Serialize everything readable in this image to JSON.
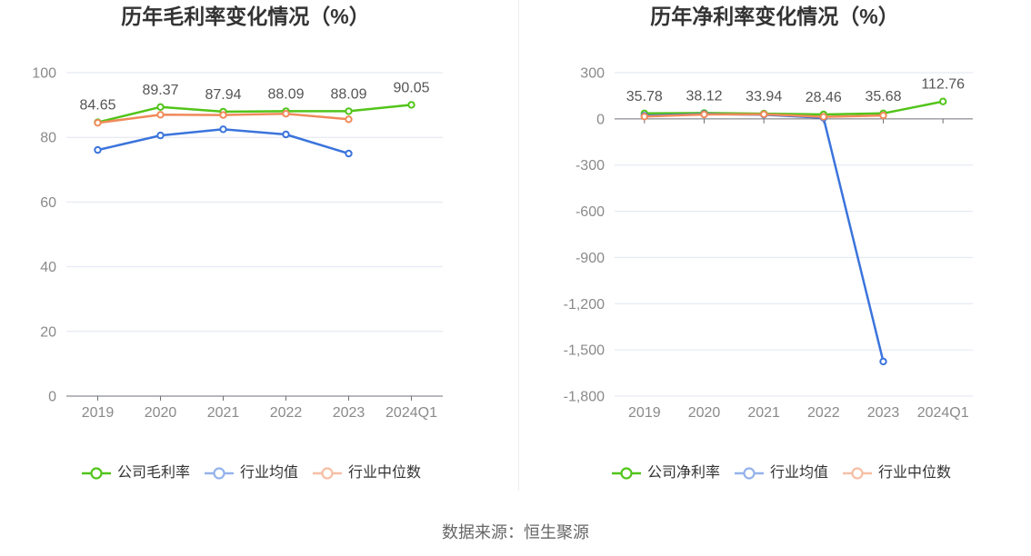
{
  "chart_data": [
    {
      "type": "line",
      "title": "历年毛利率变化情况（%）",
      "categories": [
        "2019",
        "2020",
        "2021",
        "2022",
        "2023",
        "2024Q1"
      ],
      "series": [
        {
          "name": "公司毛利率",
          "color": "#52c41a",
          "data_labels": true,
          "values": [
            84.65,
            89.37,
            87.94,
            88.09,
            88.09,
            90.05
          ]
        },
        {
          "name": "行业均值",
          "color": "#3b74dc",
          "data_labels": false,
          "values": [
            76.1,
            80.6,
            82.5,
            80.9,
            75.0,
            null
          ]
        },
        {
          "name": "行业中位数",
          "color": "#f08a5a",
          "data_labels": false,
          "values": [
            84.5,
            87.0,
            86.9,
            87.3,
            85.6,
            null
          ]
        }
      ],
      "ylim": [
        0,
        100
      ],
      "yticks": [
        {
          "value": 0,
          "label": "0"
        },
        {
          "value": 20,
          "label": "20"
        },
        {
          "value": 40,
          "label": "40"
        },
        {
          "value": 60,
          "label": "60"
        },
        {
          "value": 80,
          "label": "80"
        },
        {
          "value": 100,
          "label": "100"
        }
      ],
      "grid": true,
      "legend": "bottom"
    },
    {
      "type": "line",
      "title": "历年净利率变化情况（%）",
      "categories": [
        "2019",
        "2020",
        "2021",
        "2022",
        "2023",
        "2024Q1"
      ],
      "series": [
        {
          "name": "公司净利率",
          "color": "#52c41a",
          "data_labels": true,
          "values": [
            35.78,
            38.12,
            33.94,
            28.46,
            35.68,
            112.76
          ]
        },
        {
          "name": "行业均值",
          "color": "#3b74dc",
          "data_labels": false,
          "values": [
            20.5,
            31.4,
            27.6,
            6.8,
            -1575.0,
            null
          ]
        },
        {
          "name": "行业中位数",
          "color": "#f08a5a",
          "data_labels": false,
          "values": [
            15.2,
            28.7,
            30.1,
            13.5,
            21.9,
            null
          ]
        }
      ],
      "ylim": [
        -1800,
        300
      ],
      "yticks": [
        {
          "value": -1800,
          "label": "-1,800"
        },
        {
          "value": -1500,
          "label": "-1,500"
        },
        {
          "value": -1200,
          "label": "-1,200"
        },
        {
          "value": -900,
          "label": "-900"
        },
        {
          "value": -600,
          "label": "-600"
        },
        {
          "value": -300,
          "label": "-300"
        },
        {
          "value": 0,
          "label": "0"
        },
        {
          "value": 300,
          "label": "300"
        }
      ],
      "grid": true,
      "legend": "bottom"
    }
  ],
  "footer": {
    "source": "数据来源：恒生聚源"
  }
}
